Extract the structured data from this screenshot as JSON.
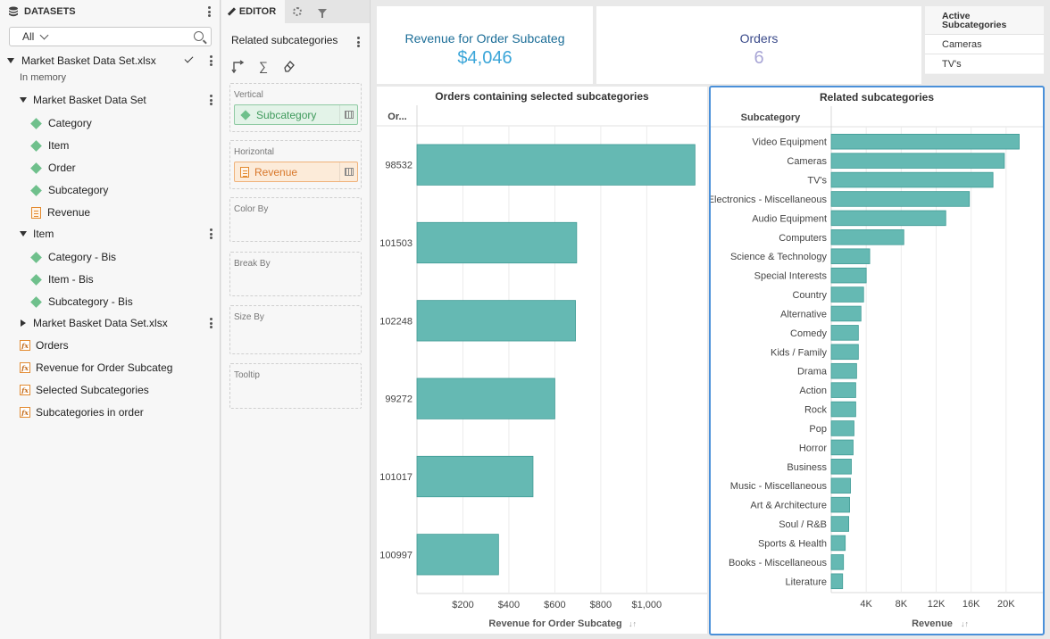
{
  "datasets_panel": {
    "title": "DATASETS",
    "filter_value": "All",
    "file": {
      "name": "Market Basket Data Set.xlsx",
      "status": "In memory"
    },
    "tree": [
      {
        "label": "Market Basket Data Set",
        "kind": "group",
        "expanded": true
      },
      {
        "label": "Category",
        "kind": "dimension"
      },
      {
        "label": "Item",
        "kind": "dimension"
      },
      {
        "label": "Order",
        "kind": "dimension"
      },
      {
        "label": "Subcategory",
        "kind": "dimension"
      },
      {
        "label": "Revenue",
        "kind": "measure"
      },
      {
        "label": "Item",
        "kind": "group",
        "expanded": true
      },
      {
        "label": "Category - Bis",
        "kind": "dimension"
      },
      {
        "label": "Item - Bis",
        "kind": "dimension"
      },
      {
        "label": "Subcategory - Bis",
        "kind": "dimension"
      },
      {
        "label": "Market Basket Data Set.xlsx",
        "kind": "group",
        "expanded": false
      },
      {
        "label": "Orders",
        "kind": "formula"
      },
      {
        "label": "Revenue for Order Subcateg",
        "kind": "formula"
      },
      {
        "label": "Selected Subcategories",
        "kind": "formula"
      },
      {
        "label": "Subcategories in order",
        "kind": "formula"
      }
    ]
  },
  "editor": {
    "tab_label": "EDITOR",
    "visualization_title": "Related subcategories",
    "slots": {
      "vertical": {
        "label": "Vertical",
        "field": "Subcategory"
      },
      "horizontal": {
        "label": "Horizontal",
        "field": "Revenue"
      },
      "color_by": "Color By",
      "break_by": "Break By",
      "size_by": "Size By",
      "tooltip": "Tooltip"
    }
  },
  "kpis": [
    {
      "title": "Revenue for Order Subcateg",
      "value": "$4,046",
      "title_color": "#1b6d97",
      "value_color": "#3aa5d8"
    },
    {
      "title": "Orders",
      "value": "6",
      "title_color": "#3a4a8a",
      "value_color": "#a9a6d6"
    }
  ],
  "active_subcategories": {
    "title": "Active Subcategories",
    "items": [
      "Cameras",
      "TV's"
    ]
  },
  "colors": {
    "bar": "#65b9b3",
    "bar_stroke": "#3f9b95",
    "selection_border": "#4a90d9"
  },
  "chart_data": [
    {
      "type": "bar",
      "orientation": "horizontal",
      "title": "Orders containing selected subcategories",
      "row_header": "Or...",
      "categories": [
        "98532",
        "101503",
        "102248",
        "99272",
        "101017",
        "100997"
      ],
      "values": [
        1210,
        695,
        690,
        600,
        505,
        355
      ],
      "xlabel": "Revenue for Order Subcateg",
      "xlim": [
        0,
        1225
      ],
      "xticks": [
        200,
        400,
        600,
        800,
        1000
      ],
      "xtick_labels": [
        "$200",
        "$400",
        "$600",
        "$800",
        "$1,000"
      ]
    },
    {
      "type": "bar",
      "orientation": "horizontal",
      "title": "Related subcategories",
      "row_header": "Subcategory",
      "categories": [
        "Video Equipment",
        "Cameras",
        "TV's",
        "Electronics - Miscellaneous",
        "Audio Equipment",
        "Computers",
        "Science & Technology",
        "Special Interests",
        "Country",
        "Alternative",
        "Comedy",
        "Kids / Family",
        "Drama",
        "Action",
        "Rock",
        "Pop",
        "Horror",
        "Business",
        "Music - Miscellaneous",
        "Art & Architecture",
        "Soul / R&B",
        "Sports & Health",
        "Books - Miscellaneous",
        "Literature"
      ],
      "values": [
        21500,
        19800,
        18500,
        15800,
        13100,
        8300,
        4400,
        4000,
        3700,
        3400,
        3100,
        3100,
        2900,
        2800,
        2800,
        2600,
        2500,
        2300,
        2200,
        2100,
        2000,
        1600,
        1400,
        1300
      ],
      "xlabel": "Revenue",
      "xlim": [
        0,
        24000
      ],
      "xticks": [
        4000,
        8000,
        12000,
        16000,
        20000
      ],
      "xtick_labels": [
        "4K",
        "8K",
        "12K",
        "16K",
        "20K"
      ]
    }
  ]
}
